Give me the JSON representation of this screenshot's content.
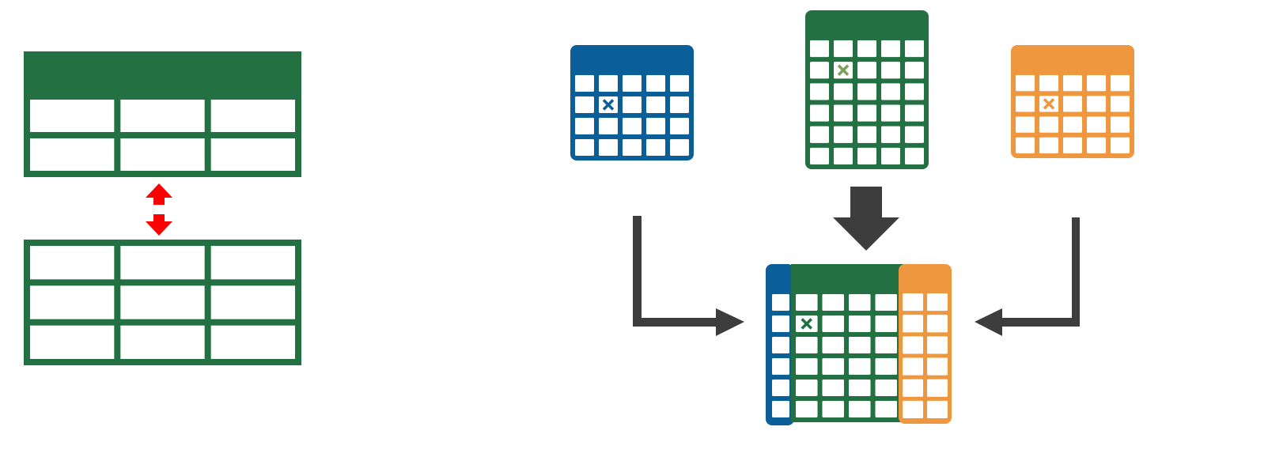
{
  "colors": {
    "green": "#237043",
    "blue": "#0A5F99",
    "orange": "#EE973F",
    "arrow_dark": "#3D3D3D",
    "arrow_red": "#FF0000",
    "cell_fill": "#FFFFFF",
    "background": "#FFFFFF"
  },
  "left_panel": {
    "top_table": {
      "color": "green",
      "has_header": true,
      "rows": 2,
      "cols": 3
    },
    "swap_arrow": {
      "icon": "double-arrow-vertical-icon",
      "color": "arrow_red"
    },
    "bottom_table": {
      "color": "green",
      "has_header": false,
      "rows": 3,
      "cols": 3
    }
  },
  "right_panel": {
    "source_tables": [
      {
        "name": "blue-table",
        "color": "blue",
        "rows": 4,
        "cols": 5,
        "marked_cell": [
          1,
          1
        ],
        "marker_icon": "x-mark-icon"
      },
      {
        "name": "green-table",
        "color": "green",
        "rows": 6,
        "cols": 5,
        "marked_cell": [
          1,
          1
        ],
        "marker_icon": "x-mark-icon"
      },
      {
        "name": "orange-table",
        "color": "orange",
        "rows": 4,
        "cols": 5,
        "marked_cell": [
          1,
          1
        ],
        "marker_icon": "x-mark-icon"
      }
    ],
    "merged_table": {
      "segments": [
        "blue",
        "green",
        "orange"
      ],
      "rows": 6,
      "marked_cell": [
        1,
        1
      ],
      "marker_icon": "x-mark-icon"
    },
    "arrows": [
      {
        "name": "elbow-arrow-left",
        "from": "blue-table",
        "to": "merged-table",
        "icon": "elbow-arrow-icon"
      },
      {
        "name": "block-arrow-down",
        "from": "green-table",
        "to": "merged-table",
        "icon": "block-arrow-down-icon"
      },
      {
        "name": "elbow-arrow-right",
        "from": "orange-table",
        "to": "merged-table",
        "icon": "elbow-arrow-icon"
      }
    ]
  }
}
